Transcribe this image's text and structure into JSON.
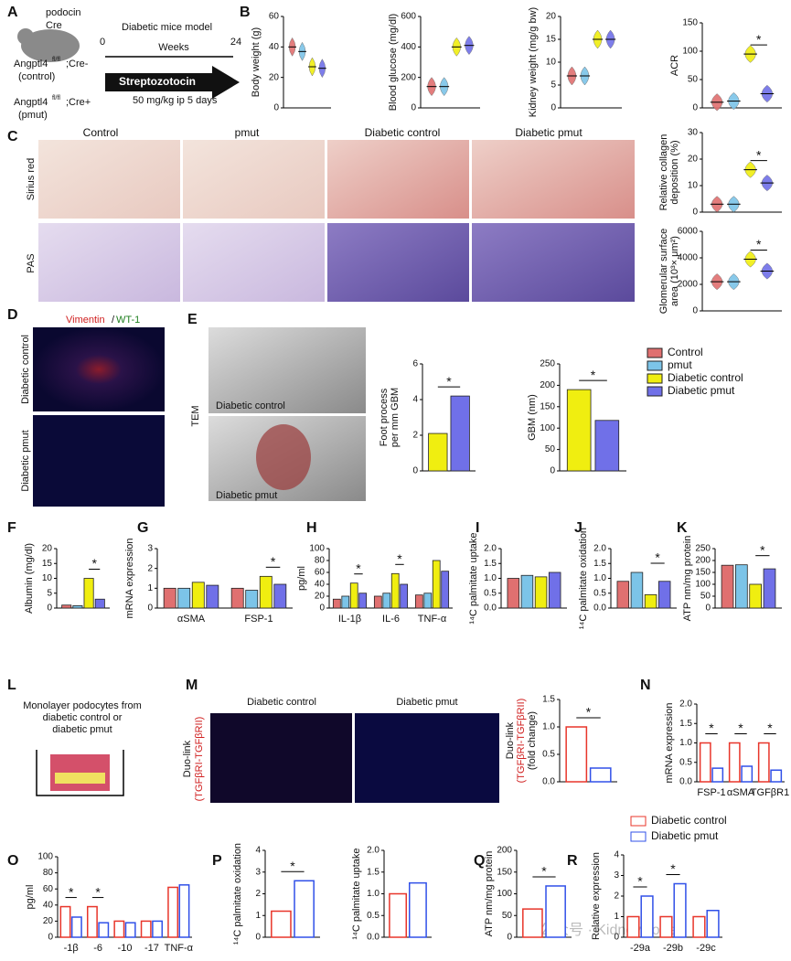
{
  "figure": {
    "letters": [
      "A",
      "B",
      "C",
      "D",
      "E",
      "F",
      "G",
      "H",
      "I",
      "J",
      "K",
      "L",
      "M",
      "N",
      "O",
      "P",
      "Q",
      "R"
    ],
    "a": {
      "mouse": [
        "podocin",
        "Cre"
      ],
      "model": "Diabetic mice model",
      "start": 0,
      "end": 24,
      "axis": "Weeks",
      "drug": "Streptozotocin",
      "dose": "50 mg/kg ip 5 days",
      "control": {
        "gene": "Angptl4",
        "sup": "fl/fl",
        "cre": ";Cre-",
        "label": "(control)"
      },
      "pmut": {
        "gene": "Angptl4",
        "sup": "fl/fl",
        "cre": ";Cre+",
        "label": "(pmut)"
      }
    },
    "c": {
      "columns": [
        "Control",
        "pmut",
        "Diabetic control",
        "Diabetic pmut"
      ],
      "rows": [
        "Sirius red",
        "PAS"
      ]
    },
    "d": {
      "stain1": "Vimentin",
      "sep": "/",
      "stain2": "WT-1",
      "rows": [
        "Diabetic control",
        "Diabetic pmut"
      ]
    },
    "e": {
      "method": "TEM",
      "images": [
        "Diabetic control",
        "Diabetic pmut"
      ]
    },
    "l": {
      "lines": [
        "Monolayer podocytes from",
        "diabetic control or",
        "diabetic pmut"
      ]
    },
    "m": {
      "columns": [
        "Diabetic control",
        "Diabetic pmut"
      ],
      "label": [
        "Duo-link",
        "(TGFβRI-TGFβRII)"
      ]
    },
    "watermark": "公众号 · KidneyCode"
  },
  "chart_data": [
    {
      "type": "violin",
      "ylabel": [
        "Body weight (g)"
      ],
      "categories": [
        null
      ],
      "ylim": [
        0,
        60
      ],
      "yticks": [
        0,
        20,
        40,
        60
      ],
      "series": [
        {
          "name": "Control",
          "color": "#e07070",
          "values": [
            40
          ]
        },
        {
          "name": "pmut",
          "color": "#7cc4e8",
          "values": [
            37
          ]
        },
        {
          "name": "Diabetic control",
          "color": "#f0ee10",
          "values": [
            27
          ]
        },
        {
          "name": "Diabetic pmut",
          "color": "#7070e8",
          "values": [
            26
          ]
        }
      ]
    },
    {
      "type": "violin",
      "ylabel": [
        "Blood glucose (mg/dl)"
      ],
      "categories": [
        null
      ],
      "ylim": [
        0,
        600
      ],
      "yticks": [
        0,
        200,
        400,
        600
      ],
      "series": [
        {
          "name": "Control",
          "color": "#e07070",
          "values": [
            140
          ]
        },
        {
          "name": "pmut",
          "color": "#7cc4e8",
          "values": [
            140
          ]
        },
        {
          "name": "Diabetic control",
          "color": "#f0ee10",
          "values": [
            400
          ]
        },
        {
          "name": "Diabetic pmut",
          "color": "#7070e8",
          "values": [
            410
          ]
        }
      ]
    },
    {
      "type": "violin",
      "ylabel": [
        "Kidney weight (mg/g bw)"
      ],
      "categories": [
        null
      ],
      "ylim": [
        0,
        20
      ],
      "yticks": [
        0,
        5,
        10,
        15,
        20
      ],
      "series": [
        {
          "name": "Control",
          "color": "#e07070",
          "values": [
            7
          ]
        },
        {
          "name": "pmut",
          "color": "#7cc4e8",
          "values": [
            7
          ]
        },
        {
          "name": "Diabetic control",
          "color": "#f0ee10",
          "values": [
            15
          ]
        },
        {
          "name": "Diabetic pmut",
          "color": "#7070e8",
          "values": [
            15
          ]
        }
      ]
    },
    {
      "type": "violin",
      "ylabel": [
        "ACR"
      ],
      "categories": [
        null
      ],
      "ylim": [
        0,
        150
      ],
      "yticks": [
        0,
        50,
        100,
        150
      ],
      "comparisons": [
        {
          "text": "*"
        }
      ],
      "series": [
        {
          "name": "Control",
          "color": "#e07070",
          "values": [
            10
          ]
        },
        {
          "name": "pmut",
          "color": "#7cc4e8",
          "values": [
            12
          ]
        },
        {
          "name": "Diabetic control",
          "color": "#f0ee10",
          "values": [
            95
          ]
        },
        {
          "name": "Diabetic pmut",
          "color": "#7070e8",
          "values": [
            25
          ]
        }
      ]
    },
    {
      "type": "violin",
      "ylabel": [
        "Relative collagen",
        "deposition (%)"
      ],
      "categories": [
        null
      ],
      "ylim": [
        0,
        30
      ],
      "yticks": [
        0,
        10,
        20,
        30
      ],
      "comparisons": [
        {
          "text": "*"
        }
      ],
      "series": [
        {
          "name": "Control",
          "color": "#e07070",
          "values": [
            3
          ]
        },
        {
          "name": "pmut",
          "color": "#7cc4e8",
          "values": [
            3
          ]
        },
        {
          "name": "Diabetic control",
          "color": "#f0ee10",
          "values": [
            16
          ]
        },
        {
          "name": "Diabetic pmut",
          "color": "#7070e8",
          "values": [
            11
          ]
        }
      ]
    },
    {
      "type": "violin",
      "ylabel": [
        "Glomerular surface",
        "area (10³× μm²)"
      ],
      "categories": [
        null
      ],
      "ylim": [
        0,
        6000
      ],
      "yticks": [
        0,
        2000,
        4000,
        6000
      ],
      "comparisons": [
        {
          "text": "*"
        }
      ],
      "series": [
        {
          "name": "Control",
          "color": "#e07070",
          "values": [
            2200
          ]
        },
        {
          "name": "pmut",
          "color": "#7cc4e8",
          "values": [
            2200
          ]
        },
        {
          "name": "Diabetic control",
          "color": "#f0ee10",
          "values": [
            3900
          ]
        },
        {
          "name": "Diabetic pmut",
          "color": "#7070e8",
          "values": [
            3000
          ]
        }
      ]
    },
    {
      "type": "bar",
      "ylabel": [
        "Foot process",
        "per mm GBM"
      ],
      "categories": [
        null
      ],
      "ylim": [
        0,
        6
      ],
      "yticks": [
        0,
        2,
        4,
        6
      ],
      "comparisons": [
        {
          "text": "*"
        }
      ],
      "series": [
        {
          "name": "Diabetic control",
          "color": "#f0ee10",
          "values": [
            2.1
          ]
        },
        {
          "name": "Diabetic pmut",
          "color": "#7070e8",
          "values": [
            4.2
          ]
        }
      ]
    },
    {
      "type": "bar",
      "ylabel": [
        "GBM (nm)"
      ],
      "categories": [
        null
      ],
      "ylim": [
        0,
        250
      ],
      "yticks": [
        0,
        50,
        100,
        150,
        200,
        250
      ],
      "comparisons": [
        {
          "text": "*"
        }
      ],
      "series": [
        {
          "name": "Diabetic control",
          "color": "#f0ee10",
          "values": [
            190
          ]
        },
        {
          "name": "Diabetic pmut",
          "color": "#7070e8",
          "values": [
            118
          ]
        }
      ]
    },
    {
      "type": "bar",
      "ylabel": [
        "Albumin (mg/dl)"
      ],
      "categories": [
        null
      ],
      "ylim": [
        0,
        20
      ],
      "yticks": [
        0,
        5,
        10,
        15,
        20
      ],
      "comparisons": [
        {
          "text": "*"
        }
      ],
      "series": [
        {
          "name": "Control",
          "color": "#e07070",
          "values": [
            1
          ]
        },
        {
          "name": "pmut",
          "color": "#7cc4e8",
          "values": [
            0.8
          ]
        },
        {
          "name": "Diabetic control",
          "color": "#f0ee10",
          "values": [
            10
          ]
        },
        {
          "name": "Diabetic pmut",
          "color": "#7070e8",
          "values": [
            3
          ]
        }
      ]
    },
    {
      "type": "bar",
      "ylabel": [
        "mRNA expression"
      ],
      "categories": [
        "αSMA",
        "FSP-1"
      ],
      "ylim": [
        0,
        3
      ],
      "yticks": [
        0,
        1,
        2,
        3
      ],
      "comparisons": [
        {
          "text": "*",
          "category": "FSP-1"
        }
      ],
      "series": [
        {
          "name": "Control",
          "color": "#e07070",
          "values": [
            1.0,
            1.0
          ]
        },
        {
          "name": "pmut",
          "color": "#7cc4e8",
          "values": [
            1.0,
            0.9
          ]
        },
        {
          "name": "Diabetic control",
          "color": "#f0ee10",
          "values": [
            1.3,
            1.6
          ]
        },
        {
          "name": "Diabetic pmut",
          "color": "#7070e8",
          "values": [
            1.15,
            1.2
          ]
        }
      ]
    },
    {
      "type": "bar",
      "ylabel": [
        "pg/ml"
      ],
      "categories": [
        "IL-1β",
        "IL-6",
        "TNF-α"
      ],
      "ylim": [
        0,
        100
      ],
      "yticks": [
        0,
        20,
        40,
        60,
        80,
        100
      ],
      "comparisons": [
        {
          "text": "*",
          "category": "IL-1β"
        },
        {
          "text": "*",
          "category": "IL-6"
        }
      ],
      "series": [
        {
          "name": "Control",
          "color": "#e07070",
          "values": [
            15,
            20,
            22
          ]
        },
        {
          "name": "pmut",
          "color": "#7cc4e8",
          "values": [
            20,
            25,
            25
          ]
        },
        {
          "name": "Diabetic control",
          "color": "#f0ee10",
          "values": [
            42,
            58,
            80
          ]
        },
        {
          "name": "Diabetic pmut",
          "color": "#7070e8",
          "values": [
            25,
            40,
            62
          ]
        }
      ]
    },
    {
      "type": "bar",
      "ylabel": [
        "¹⁴C palmitate uptake"
      ],
      "categories": [
        null
      ],
      "ylim": [
        0,
        2
      ],
      "yticks": [
        {
          "value": 0,
          "label": "0.0"
        },
        0.5,
        {
          "value": 1,
          "label": "1.0"
        },
        1.5,
        {
          "value": 2,
          "label": "2.0"
        }
      ],
      "series": [
        {
          "name": "Control",
          "color": "#e07070",
          "values": [
            1.0
          ]
        },
        {
          "name": "pmut",
          "color": "#7cc4e8",
          "values": [
            1.1
          ]
        },
        {
          "name": "Diabetic control",
          "color": "#f0ee10",
          "values": [
            1.05
          ]
        },
        {
          "name": "Diabetic pmut",
          "color": "#7070e8",
          "values": [
            1.2
          ]
        }
      ]
    },
    {
      "type": "bar",
      "ylabel": [
        "¹⁴C palmitate oxidation"
      ],
      "categories": [
        null
      ],
      "ylim": [
        0,
        2
      ],
      "yticks": [
        {
          "value": 0,
          "label": "0.0"
        },
        0.5,
        {
          "value": 1,
          "label": "1.0"
        },
        1.5,
        {
          "value": 2,
          "label": "2.0"
        }
      ],
      "comparisons": [
        {
          "text": "*"
        }
      ],
      "series": [
        {
          "name": "Control",
          "color": "#e07070",
          "values": [
            0.9
          ]
        },
        {
          "name": "pmut",
          "color": "#7cc4e8",
          "values": [
            1.2
          ]
        },
        {
          "name": "Diabetic control",
          "color": "#f0ee10",
          "values": [
            0.45
          ]
        },
        {
          "name": "Diabetic pmut",
          "color": "#7070e8",
          "values": [
            0.9
          ]
        }
      ]
    },
    {
      "type": "bar",
      "ylabel": [
        "ATP nm/mg protein"
      ],
      "categories": [
        null
      ],
      "ylim": [
        0,
        250
      ],
      "yticks": [
        0,
        50,
        100,
        150,
        200,
        250
      ],
      "comparisons": [
        {
          "text": "*"
        }
      ],
      "series": [
        {
          "name": "Control",
          "color": "#e07070",
          "values": [
            180
          ]
        },
        {
          "name": "pmut",
          "color": "#7cc4e8",
          "values": [
            182
          ]
        },
        {
          "name": "Diabetic control",
          "color": "#f0ee10",
          "values": [
            100
          ]
        },
        {
          "name": "Diabetic pmut",
          "color": "#7070e8",
          "values": [
            165
          ]
        }
      ]
    },
    {
      "type": "bar",
      "open_bars": true,
      "ylabel": [
        "Duo-link",
        "(TGFβRI-TGFβRII)",
        "(fold change)"
      ],
      "categories": [
        null
      ],
      "ylim": [
        0,
        1.5
      ],
      "yticks": [
        {
          "value": 0,
          "label": "0.0"
        },
        0.5,
        {
          "value": 1,
          "label": "1.0"
        },
        1.5
      ],
      "comparisons": [
        {
          "text": "*"
        }
      ],
      "series": [
        {
          "name": "Diabetic control",
          "color": "#e8352a",
          "values": [
            1.0
          ]
        },
        {
          "name": "Diabetic pmut",
          "color": "#3050e8",
          "values": [
            0.25
          ]
        }
      ]
    },
    {
      "type": "bar",
      "open_bars": true,
      "ylabel": [
        "mRNA expression"
      ],
      "categories": [
        "FSP-1",
        "αSMA",
        "TGFβR1"
      ],
      "ylim": [
        0,
        2
      ],
      "yticks": [
        {
          "value": 0,
          "label": "0.0"
        },
        0.5,
        {
          "value": 1,
          "label": "1.0"
        },
        1.5,
        {
          "value": 2,
          "label": "2.0"
        }
      ],
      "comparisons": [
        {
          "text": "*",
          "category": "FSP-1"
        },
        {
          "text": "*",
          "category": "αSMA"
        },
        {
          "text": "*",
          "category": "TGFβR1"
        }
      ],
      "series": [
        {
          "name": "Diabetic control",
          "color": "#e8352a",
          "values": [
            1.0,
            1.0,
            1.0
          ]
        },
        {
          "name": "Diabetic pmut",
          "color": "#3050e8",
          "values": [
            0.35,
            0.4,
            0.3
          ]
        }
      ]
    },
    {
      "type": "bar",
      "open_bars": true,
      "ylabel": [
        "pg/ml"
      ],
      "categories": [
        "-1β",
        "-6",
        "-10",
        "-17",
        "TNF-α"
      ],
      "ylim": [
        0,
        100
      ],
      "yticks": [
        0,
        20,
        40,
        60,
        80,
        100
      ],
      "comparisons": [
        {
          "text": "*",
          "category": "-1β"
        },
        {
          "text": "*",
          "category": "-6"
        }
      ],
      "series": [
        {
          "name": "Diabetic control",
          "color": "#e8352a",
          "values": [
            38,
            38,
            20,
            20,
            62
          ]
        },
        {
          "name": "Diabetic pmut",
          "color": "#3050e8",
          "values": [
            25,
            18,
            18,
            20,
            65
          ]
        }
      ]
    },
    {
      "type": "bar",
      "open_bars": true,
      "ylabel": [
        "¹⁴C palmitate oxidation"
      ],
      "categories": [
        null
      ],
      "ylim": [
        0,
        4
      ],
      "yticks": [
        0,
        1,
        2,
        3,
        4
      ],
      "comparisons": [
        {
          "text": "*"
        }
      ],
      "series": [
        {
          "name": "Diabetic control",
          "color": "#e8352a",
          "values": [
            1.2
          ]
        },
        {
          "name": "Diabetic pmut",
          "color": "#3050e8",
          "values": [
            2.6
          ]
        }
      ]
    },
    {
      "type": "bar",
      "open_bars": true,
      "ylabel": [
        "¹⁴C palmitate uptake"
      ],
      "categories": [
        null
      ],
      "ylim": [
        0,
        2
      ],
      "yticks": [
        {
          "value": 0,
          "label": "0.0"
        },
        0.5,
        {
          "value": 1,
          "label": "1.0"
        },
        1.5,
        {
          "value": 2,
          "label": "2.0"
        }
      ],
      "series": [
        {
          "name": "Diabetic control",
          "color": "#e8352a",
          "values": [
            1.0
          ]
        },
        {
          "name": "Diabetic pmut",
          "color": "#3050e8",
          "values": [
            1.25
          ]
        }
      ]
    },
    {
      "type": "bar",
      "open_bars": true,
      "ylabel": [
        "ATP nm/mg protein"
      ],
      "categories": [
        null
      ],
      "ylim": [
        0,
        200
      ],
      "yticks": [
        0,
        50,
        100,
        150,
        200
      ],
      "comparisons": [
        {
          "text": "*"
        }
      ],
      "series": [
        {
          "name": "Diabetic control",
          "color": "#e8352a",
          "values": [
            65
          ]
        },
        {
          "name": "Diabetic pmut",
          "color": "#3050e8",
          "values": [
            118
          ]
        }
      ]
    },
    {
      "type": "bar",
      "open_bars": true,
      "ylabel": [
        "Relative expression"
      ],
      "categories": [
        "-29a",
        "-29b",
        "-29c"
      ],
      "ylim": [
        0,
        4
      ],
      "yticks": [
        0,
        1,
        2,
        3,
        4
      ],
      "comparisons": [
        {
          "text": "*",
          "category": "-29a"
        },
        {
          "text": "*",
          "category": "-29b"
        }
      ],
      "series": [
        {
          "name": "Diabetic control",
          "color": "#e8352a",
          "values": [
            1.0,
            1.0,
            1.0
          ]
        },
        {
          "name": "Diabetic pmut",
          "color": "#3050e8",
          "values": [
            2.0,
            2.6,
            1.3
          ]
        }
      ]
    }
  ]
}
